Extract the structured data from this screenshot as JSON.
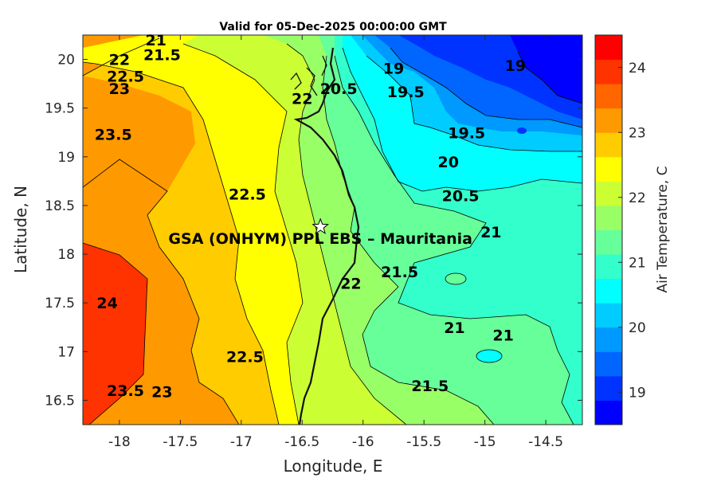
{
  "chart_data": {
    "type": "contour",
    "title": "Valid for 05-Dec-2025 00:00:00 GMT",
    "xlabel": "Longitude, E",
    "ylabel": "Latitude, N",
    "xlim": [
      -18.3,
      -14.2
    ],
    "ylim": [
      16.25,
      20.25
    ],
    "x_ticks": [
      -18,
      -17.5,
      -17,
      -16.5,
      -16,
      -15.5,
      -15,
      -14.5
    ],
    "x_tick_labels": [
      "-18",
      "-17.5",
      "-17",
      "-16.5",
      "-16",
      "-15.5",
      "-15",
      "-14.5"
    ],
    "y_ticks": [
      16.5,
      17,
      17.5,
      18,
      18.5,
      19,
      19.5,
      20
    ],
    "y_tick_labels": [
      "16.5",
      "17",
      "17.5",
      "18",
      "18.5",
      "19",
      "19.5",
      "20"
    ],
    "colorbar": {
      "label": "Air Temperature, C",
      "range": [
        18.5,
        24.5
      ],
      "ticks": [
        19,
        20,
        21,
        22,
        23,
        24
      ],
      "tick_labels": [
        "19",
        "20",
        "21",
        "22",
        "23",
        "24"
      ],
      "colors": [
        "#0000ff",
        "#0033ff",
        "#0066ff",
        "#0099ff",
        "#00ccff",
        "#00ffff",
        "#33ffcc",
        "#66ff99",
        "#99ff66",
        "#ccff33",
        "#ffff00",
        "#ffcc00",
        "#ff9900",
        "#ff6600",
        "#ff3300",
        "#ff0000"
      ]
    },
    "contour_levels": [
      19,
      19.5,
      20,
      20.5,
      21,
      21.5,
      22,
      22.5,
      23,
      23.5,
      24
    ],
    "contour_labels": [
      {
        "text": "21",
        "lon": -17.7,
        "lat": 20.2
      },
      {
        "text": "21.5",
        "lon": -17.65,
        "lat": 20.05
      },
      {
        "text": "22",
        "lon": -18.0,
        "lat": 20.0
      },
      {
        "text": "22.5",
        "lon": -17.95,
        "lat": 19.83
      },
      {
        "text": "23",
        "lon": -18.0,
        "lat": 19.7
      },
      {
        "text": "23.5",
        "lon": -18.05,
        "lat": 19.23
      },
      {
        "text": "24",
        "lon": -18.1,
        "lat": 17.5
      },
      {
        "text": "23.5",
        "lon": -17.95,
        "lat": 16.6
      },
      {
        "text": "23",
        "lon": -17.65,
        "lat": 16.59
      },
      {
        "text": "22.5",
        "lon": -16.97,
        "lat": 16.95
      },
      {
        "text": "22.5",
        "lon": -16.95,
        "lat": 18.62
      },
      {
        "text": "22",
        "lon": -16.5,
        "lat": 19.6
      },
      {
        "text": "20.5",
        "lon": -16.2,
        "lat": 19.7
      },
      {
        "text": "19",
        "lon": -15.75,
        "lat": 19.91
      },
      {
        "text": "19.5",
        "lon": -15.65,
        "lat": 19.67
      },
      {
        "text": "19",
        "lon": -14.75,
        "lat": 19.94
      },
      {
        "text": "19.5",
        "lon": -15.15,
        "lat": 19.25
      },
      {
        "text": "20",
        "lon": -15.3,
        "lat": 18.95
      },
      {
        "text": "20.5",
        "lon": -15.2,
        "lat": 18.6
      },
      {
        "text": "21",
        "lon": -14.95,
        "lat": 18.23
      },
      {
        "text": "21.5",
        "lon": -15.7,
        "lat": 17.82
      },
      {
        "text": "22",
        "lon": -16.1,
        "lat": 17.7
      },
      {
        "text": "21",
        "lon": -15.25,
        "lat": 17.25
      },
      {
        "text": "21",
        "lon": -14.85,
        "lat": 17.17
      },
      {
        "text": "21.5",
        "lon": -15.45,
        "lat": 16.65
      }
    ],
    "site": {
      "label": "GSA (ONHYM) PPL EBS  – Mauritania",
      "lon": -16.35,
      "lat": 18.28
    }
  }
}
